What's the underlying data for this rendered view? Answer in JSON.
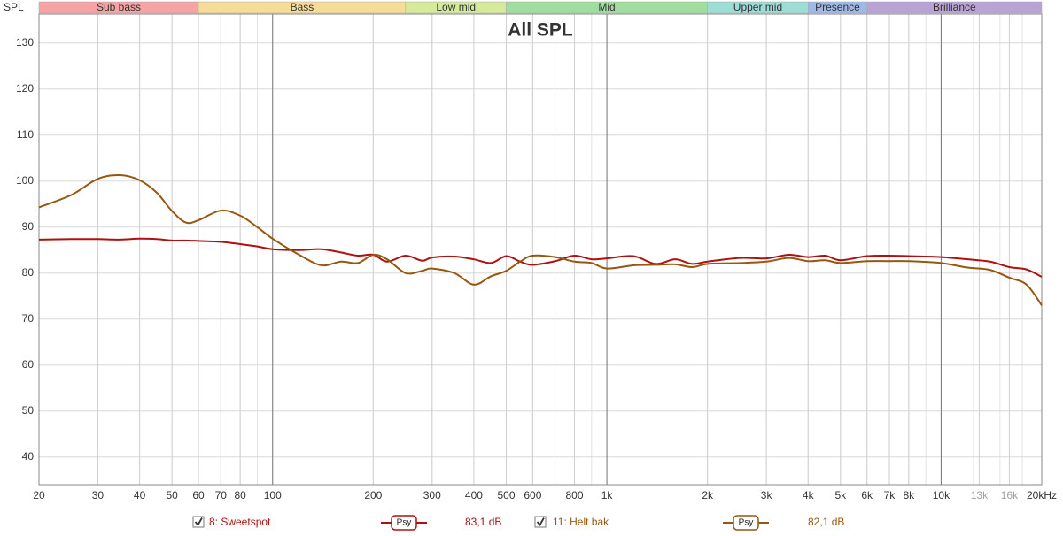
{
  "chart_data": {
    "type": "line",
    "title": "All SPL",
    "y_label": "SPL",
    "log_x": true,
    "grid": true,
    "xlim": [
      20,
      20000
    ],
    "ylim": [
      34,
      136.3
    ],
    "xticks": [
      20,
      30,
      40,
      50,
      60,
      70,
      80,
      100,
      200,
      300,
      400,
      500,
      600,
      800,
      {
        "value": 1000,
        "label": "1k"
      },
      {
        "value": 2000,
        "label": "2k"
      },
      {
        "value": 3000,
        "label": "3k"
      },
      {
        "value": 4000,
        "label": "4k"
      },
      {
        "value": 5000,
        "label": "5k"
      },
      {
        "value": 6000,
        "label": "6k"
      },
      {
        "value": 7000,
        "label": "7k"
      },
      {
        "value": 8000,
        "label": "8k"
      },
      {
        "value": 10000,
        "label": "10k"
      },
      {
        "value": 13000,
        "label": "13k",
        "color": "#a0a0a0"
      },
      {
        "value": 16000,
        "label": "16k",
        "color": "#a0a0a0"
      },
      {
        "value": 20000,
        "label": "20kHz"
      }
    ],
    "yticks": [
      40,
      50,
      60,
      70,
      80,
      90,
      100,
      110,
      120,
      130
    ],
    "bands": [
      {
        "label": "Sub bass",
        "from": 20,
        "to": 60,
        "color": "#f5a3a3"
      },
      {
        "label": "Bass",
        "from": 60,
        "to": 250,
        "color": "#f6dc98"
      },
      {
        "label": "Low mid",
        "from": 250,
        "to": 500,
        "color": "#d5eb9b"
      },
      {
        "label": "Mid",
        "from": 500,
        "to": 2000,
        "color": "#a0dea0"
      },
      {
        "label": "Upper mid",
        "from": 2000,
        "to": 4000,
        "color": "#9edcd6"
      },
      {
        "label": "Presence",
        "from": 4000,
        "to": 6000,
        "color": "#a0b8e6"
      },
      {
        "label": "Brilliance",
        "from": 6000,
        "to": 20000,
        "color": "#b9a3d5"
      }
    ],
    "x": [
      20,
      25,
      30,
      35,
      40,
      45,
      50,
      55,
      60,
      70,
      80,
      90,
      100,
      120,
      140,
      160,
      180,
      200,
      220,
      250,
      280,
      300,
      350,
      400,
      450,
      500,
      550,
      600,
      700,
      800,
      900,
      1000,
      1200,
      1400,
      1600,
      1800,
      2000,
      2500,
      3000,
      3500,
      4000,
      4500,
      5000,
      6000,
      7000,
      8000,
      10000,
      12000,
      14000,
      16000,
      18000,
      20000
    ],
    "series": [
      {
        "name": "8: Sweetspot",
        "smoothing": "Psy",
        "level": "83,1 dB",
        "color": "#b01010",
        "values": [
          87.3,
          87.4,
          87.4,
          87.3,
          87.5,
          87.4,
          87.1,
          87.1,
          87.0,
          86.8,
          86.3,
          85.8,
          85.2,
          85.0,
          85.2,
          84.5,
          83.8,
          84.0,
          82.5,
          83.8,
          82.7,
          83.4,
          83.6,
          83.0,
          82.2,
          83.7,
          82.5,
          81.8,
          82.6,
          83.8,
          83.0,
          83.2,
          83.7,
          82.0,
          83.0,
          82.0,
          82.5,
          83.3,
          83.2,
          84.0,
          83.5,
          83.8,
          82.8,
          83.7,
          83.8,
          83.7,
          83.5,
          83.0,
          82.5,
          81.3,
          80.8,
          79.2
        ]
      },
      {
        "name": "11: Helt bak",
        "smoothing": "Psy",
        "level": "82,1 dB",
        "color": "#97570f",
        "values": [
          94.3,
          97.0,
          100.5,
          101.3,
          100.2,
          97.5,
          93.5,
          91.0,
          91.5,
          93.6,
          92.5,
          90.0,
          87.5,
          84.0,
          81.7,
          82.5,
          82.2,
          84.0,
          83.0,
          80.0,
          80.5,
          81.0,
          80.0,
          77.5,
          79.3,
          80.5,
          82.5,
          83.8,
          83.5,
          82.5,
          82.2,
          81.0,
          81.7,
          81.8,
          81.9,
          81.3,
          82.0,
          82.2,
          82.5,
          83.3,
          82.6,
          82.8,
          82.2,
          82.6,
          82.6,
          82.6,
          82.2,
          81.2,
          80.7,
          79.0,
          77.5,
          73.0
        ]
      }
    ]
  }
}
